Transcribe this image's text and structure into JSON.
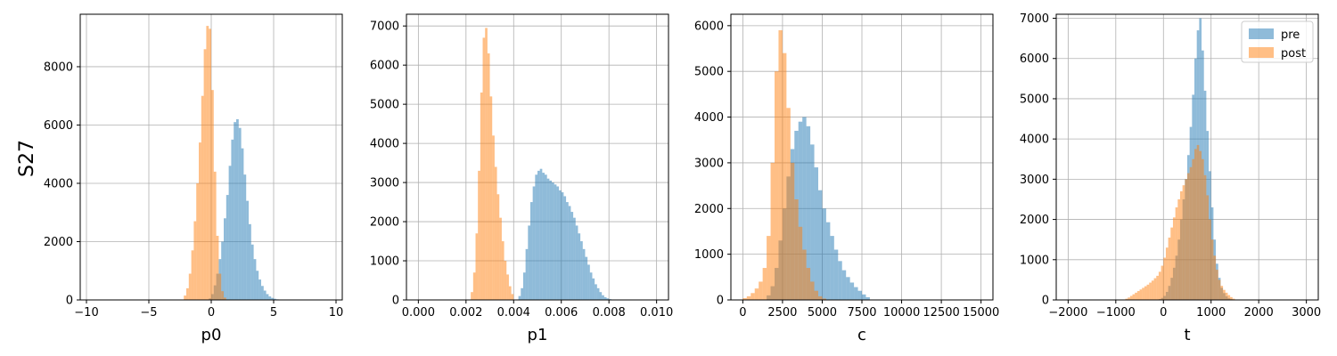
{
  "row_label": "S27",
  "colors": {
    "pre": "#1f77b4",
    "post": "#ff7f0e",
    "alpha": 0.5,
    "grid": "#b0b0b0"
  },
  "legend": {
    "placement": "top-right",
    "entries": [
      "pre",
      "post"
    ]
  },
  "chart_data": [
    {
      "type": "histogram",
      "xlabel": "p0",
      "xlim": [
        -10.5,
        10.5
      ],
      "ylim": [
        0,
        9800
      ],
      "xticks": [
        -10,
        -5,
        0,
        5,
        10
      ],
      "xtick_labels": [
        "−10",
        "−5",
        "0",
        "5",
        "10"
      ],
      "yticks": [
        0,
        2000,
        4000,
        6000,
        8000
      ],
      "yticks_labels": [
        "0",
        "2000",
        "4000",
        "6000",
        "8000"
      ],
      "grid": true,
      "bin_width": 0.2,
      "series": [
        {
          "name": "pre",
          "centers": [
            -0.1,
            0.1,
            0.3,
            0.5,
            0.7,
            0.9,
            1.1,
            1.3,
            1.5,
            1.7,
            1.9,
            2.1,
            2.3,
            2.5,
            2.7,
            2.9,
            3.1,
            3.3,
            3.5,
            3.7,
            3.9,
            4.1,
            4.3,
            4.5,
            4.7,
            4.9,
            5.1,
            5.3
          ],
          "counts": [
            50,
            200,
            500,
            900,
            1400,
            2000,
            2800,
            3600,
            4600,
            5500,
            6100,
            6200,
            5900,
            5200,
            4300,
            3400,
            2600,
            1900,
            1400,
            1000,
            700,
            480,
            320,
            200,
            120,
            70,
            40,
            20
          ]
        },
        {
          "name": "post",
          "centers": [
            -2.1,
            -1.9,
            -1.7,
            -1.5,
            -1.3,
            -1.1,
            -0.9,
            -0.7,
            -0.5,
            -0.3,
            -0.1,
            0.1,
            0.3,
            0.5,
            0.7,
            0.9,
            1.1
          ],
          "counts": [
            150,
            400,
            900,
            1700,
            2700,
            4000,
            5400,
            7000,
            8600,
            9400,
            9300,
            7200,
            4400,
            2200,
            900,
            300,
            80
          ]
        }
      ]
    },
    {
      "type": "histogram",
      "xlabel": "p1",
      "xlim": [
        -0.0005,
        0.0105
      ],
      "ylim": [
        0,
        7300
      ],
      "xticks": [
        0,
        0.002,
        0.004,
        0.006,
        0.008,
        0.01
      ],
      "xtick_labels": [
        "0.000",
        "0.002",
        "0.004",
        "0.006",
        "0.008",
        "0.010"
      ],
      "yticks": [
        0,
        1000,
        2000,
        3000,
        4000,
        5000,
        6000,
        7000
      ],
      "yticks_labels": [
        "0",
        "1000",
        "2000",
        "3000",
        "4000",
        "5000",
        "6000",
        "7000"
      ],
      "grid": true,
      "bin_width": 0.0001,
      "series": [
        {
          "name": "pre",
          "centers": [
            0.00425,
            0.00435,
            0.00445,
            0.00455,
            0.00465,
            0.00475,
            0.00485,
            0.00495,
            0.00505,
            0.00515,
            0.00525,
            0.00535,
            0.00545,
            0.00555,
            0.00565,
            0.00575,
            0.00585,
            0.00595,
            0.00605,
            0.00615,
            0.00625,
            0.00635,
            0.00645,
            0.00655,
            0.00665,
            0.00675,
            0.00685,
            0.00695,
            0.00705,
            0.00715,
            0.00725,
            0.00735,
            0.00745,
            0.00755,
            0.00765,
            0.00775,
            0.00785,
            0.00795,
            0.00805
          ],
          "counts": [
            100,
            300,
            700,
            1300,
            1900,
            2500,
            2900,
            3200,
            3300,
            3350,
            3250,
            3200,
            3100,
            3050,
            3000,
            2950,
            2900,
            2800,
            2750,
            2650,
            2500,
            2400,
            2250,
            2100,
            1900,
            1700,
            1500,
            1300,
            1100,
            900,
            700,
            550,
            400,
            300,
            200,
            120,
            70,
            40,
            20
          ]
        },
        {
          "name": "post",
          "centers": [
            0.00225,
            0.00235,
            0.00245,
            0.00255,
            0.00265,
            0.00275,
            0.00285,
            0.00295,
            0.00305,
            0.00315,
            0.00325,
            0.00335,
            0.00345,
            0.00355,
            0.00365,
            0.00375,
            0.00385,
            0.00395
          ],
          "counts": [
            200,
            700,
            1700,
            3300,
            5300,
            6700,
            6950,
            6300,
            5200,
            4200,
            3400,
            2700,
            2100,
            1500,
            1000,
            650,
            350,
            150
          ]
        }
      ]
    },
    {
      "type": "histogram",
      "xlabel": "c",
      "xlim": [
        -750,
        15750
      ],
      "ylim": [
        0,
        6250
      ],
      "xticks": [
        0,
        2500,
        5000,
        7500,
        10000,
        12500,
        15000
      ],
      "xtick_labels": [
        "0",
        "2500",
        "5000",
        "7500",
        "10000",
        "12500",
        "15000"
      ],
      "yticks": [
        0,
        1000,
        2000,
        3000,
        4000,
        5000,
        6000
      ],
      "yticks_labels": [
        "0",
        "1000",
        "2000",
        "3000",
        "4000",
        "5000",
        "6000"
      ],
      "grid": true,
      "bin_width": 250,
      "series": [
        {
          "name": "pre",
          "centers": [
            1625,
            1875,
            2125,
            2375,
            2625,
            2875,
            3125,
            3375,
            3625,
            3875,
            4125,
            4375,
            4625,
            4875,
            5125,
            5375,
            5625,
            5875,
            6125,
            6375,
            6625,
            6875,
            7125,
            7375,
            7625,
            7875
          ],
          "counts": [
            100,
            300,
            700,
            1300,
            2000,
            2700,
            3300,
            3700,
            3900,
            4000,
            3800,
            3400,
            2900,
            2400,
            2000,
            1700,
            1400,
            1100,
            850,
            650,
            500,
            380,
            280,
            200,
            120,
            60
          ]
        },
        {
          "name": "post",
          "centers": [
            125,
            375,
            625,
            875,
            1125,
            1375,
            1625,
            1875,
            2125,
            2375,
            2625,
            2875,
            3125,
            3375,
            3625,
            3875,
            4125,
            4375,
            4625,
            4875,
            5125
          ],
          "counts": [
            40,
            80,
            150,
            250,
            400,
            700,
            1400,
            3000,
            5000,
            5900,
            5400,
            4200,
            3000,
            2200,
            1600,
            1100,
            700,
            400,
            200,
            80,
            30
          ]
        }
      ]
    },
    {
      "type": "histogram",
      "xlabel": "t",
      "xlim": [
        -2250,
        3250
      ],
      "ylim": [
        0,
        7100
      ],
      "xticks": [
        -2000,
        -1000,
        0,
        1000,
        2000,
        3000
      ],
      "xtick_labels": [
        "−2000",
        "−1000",
        "0",
        "1000",
        "2000",
        "3000"
      ],
      "yticks": [
        0,
        1000,
        2000,
        3000,
        4000,
        5000,
        6000,
        7000
      ],
      "yticks_labels": [
        "0",
        "1000",
        "2000",
        "3000",
        "4000",
        "5000",
        "6000",
        "7000"
      ],
      "grid": true,
      "legend": true,
      "bin_width": 50,
      "series": [
        {
          "name": "pre",
          "centers": [
            -75,
            -25,
            25,
            75,
            125,
            175,
            225,
            275,
            325,
            375,
            425,
            475,
            525,
            575,
            625,
            675,
            725,
            775,
            825,
            875,
            925,
            975,
            1025,
            1075,
            1125,
            1175,
            1225,
            1275,
            1325,
            1375,
            1425,
            1475
          ],
          "counts": [
            20,
            50,
            100,
            200,
            350,
            550,
            800,
            1100,
            1500,
            2000,
            2500,
            3000,
            3600,
            4300,
            5100,
            6000,
            6700,
            7000,
            6200,
            5200,
            4200,
            3200,
            2300,
            1500,
            900,
            550,
            300,
            170,
            90,
            40,
            20,
            10
          ]
        },
        {
          "name": "post",
          "centers": [
            -775,
            -725,
            -675,
            -625,
            -575,
            -525,
            -475,
            -425,
            -375,
            -325,
            -275,
            -225,
            -175,
            -125,
            -75,
            -25,
            25,
            75,
            125,
            175,
            225,
            275,
            325,
            375,
            425,
            475,
            525,
            575,
            625,
            675,
            725,
            775,
            825,
            875,
            925,
            975,
            1025,
            1075,
            1125,
            1175,
            1225,
            1275,
            1325,
            1375,
            1425,
            1475
          ],
          "counts": [
            30,
            60,
            100,
            140,
            180,
            220,
            260,
            300,
            340,
            380,
            430,
            480,
            540,
            600,
            700,
            850,
            1050,
            1300,
            1550,
            1800,
            2050,
            2300,
            2500,
            2700,
            2850,
            3000,
            3150,
            3300,
            3500,
            3750,
            3850,
            3700,
            3500,
            3100,
            2600,
            2000,
            1500,
            1100,
            750,
            500,
            350,
            250,
            180,
            120,
            70,
            30
          ]
        }
      ]
    }
  ]
}
